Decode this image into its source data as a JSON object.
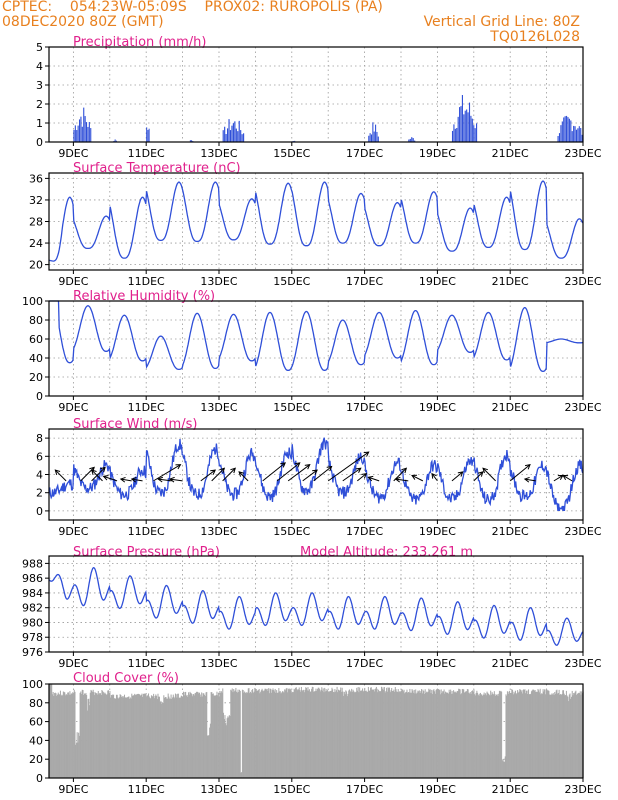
{
  "header": {
    "line1": "CPTEC:    054:23W-05:09S    PROX02: RUROPOLIS (PA)",
    "line2_left": "08DEC2020 80Z (GMT)",
    "line2_right": "Vertical Grid Line: 80Z",
    "line3_right": "TQ0126L028"
  },
  "colors": {
    "header": "#e8801f",
    "title": "#e0208c",
    "series": "#2f4fd8",
    "cloud": "#a9a9a9",
    "grid": "#9a9a9a",
    "arrow": "#000000"
  },
  "x_ticks": [
    "9DEC",
    "11DEC",
    "13DEC",
    "15DEC",
    "17DEC",
    "19DEC",
    "21DEC",
    "23DEC"
  ],
  "chart_data": [
    {
      "id": "precip",
      "type": "bar",
      "title": "Precipitation (mm/h)",
      "ylim": [
        0,
        5
      ],
      "yticks": [
        0,
        1,
        2,
        3,
        4,
        5
      ],
      "x_range_days": [
        8.33,
        23.0
      ],
      "bursts": [
        {
          "x": 9.0,
          "w": 0.5,
          "max": 2.0
        },
        {
          "x": 10.1,
          "w": 0.1,
          "max": 0.2
        },
        {
          "x": 11.0,
          "w": 0.1,
          "max": 1.4
        },
        {
          "x": 12.2,
          "w": 0.1,
          "max": 0.2
        },
        {
          "x": 13.1,
          "w": 0.6,
          "max": 1.4
        },
        {
          "x": 15.0,
          "w": 0.1,
          "max": 0.1
        },
        {
          "x": 17.1,
          "w": 0.3,
          "max": 1.1
        },
        {
          "x": 18.2,
          "w": 0.2,
          "max": 0.3
        },
        {
          "x": 19.4,
          "w": 0.7,
          "max": 2.6
        },
        {
          "x": 22.3,
          "w": 0.7,
          "max": 1.6
        }
      ]
    },
    {
      "id": "temp",
      "type": "line",
      "title": "Surface Temperature (nC)",
      "ylim": [
        19,
        37
      ],
      "yticks": [
        20,
        24,
        28,
        32,
        36
      ],
      "x_range_days": [
        8.33,
        23.0
      ],
      "daily_min": [
        20.3,
        23.0,
        21.2,
        24.5,
        24.3,
        24.6,
        23.8,
        23.5,
        24.0,
        23.5,
        24.0,
        22.5,
        23.2,
        22.8,
        21.2
      ],
      "daily_max": [
        32.5,
        29.0,
        32.5,
        35.3,
        35.3,
        32.2,
        35.1,
        35.3,
        33.2,
        31.5,
        33.5,
        30.5,
        32.5,
        35.5,
        28.5
      ]
    },
    {
      "id": "rh",
      "type": "line",
      "title": "Relative Humidity (%)",
      "ylim": [
        0,
        100
      ],
      "yticks": [
        0,
        20,
        40,
        60,
        80,
        100
      ],
      "x_range_days": [
        8.33,
        23.0
      ],
      "daily_min": [
        35,
        47,
        37,
        28,
        29,
        37,
        27,
        27,
        33,
        40,
        33,
        46,
        38,
        26,
        56
      ],
      "daily_max": [
        100,
        95,
        85,
        63,
        87,
        86,
        88,
        89,
        80,
        88,
        90,
        85,
        88,
        93,
        60
      ]
    },
    {
      "id": "wind",
      "type": "line",
      "title": "Surface Wind (m/s)",
      "ylim": [
        -1,
        9
      ],
      "yticks": [
        0,
        2,
        4,
        6,
        8
      ],
      "x_range_days": [
        8.33,
        23.0
      ],
      "daily_min": [
        2.0,
        2.5,
        1.8,
        2.0,
        1.8,
        1.8,
        1.6,
        2.3,
        2.0,
        1.5,
        1.2,
        1.3,
        1.2,
        1.6,
        0.2
      ],
      "daily_max": [
        3.0,
        5.0,
        4.5,
        7.3,
        6.8,
        6.3,
        6.5,
        7.5,
        6.0,
        5.3,
        5.0,
        5.5,
        6.2,
        5.0,
        5.0
      ],
      "arrows": [
        {
          "t": 8.8,
          "u": -1.2,
          "v": 1.2
        },
        {
          "t": 9.2,
          "u": 1.5,
          "v": 1.5
        },
        {
          "t": 9.5,
          "u": 1.5,
          "v": 1.5
        },
        {
          "t": 9.8,
          "u": -1.2,
          "v": 1.2
        },
        {
          "t": 10.2,
          "u": -1.5,
          "v": 0.5
        },
        {
          "t": 10.6,
          "u": -1.2,
          "v": 0.2
        },
        {
          "t": 10.9,
          "u": -1.2,
          "v": 0.2
        },
        {
          "t": 11.2,
          "u": 3.0,
          "v": 1.8
        },
        {
          "t": 11.7,
          "u": -1.5,
          "v": 0.2
        },
        {
          "t": 12.0,
          "u": -1.4,
          "v": 0.2
        },
        {
          "t": 12.5,
          "u": 1.6,
          "v": 1.2
        },
        {
          "t": 12.8,
          "u": 1.4,
          "v": 1.4
        },
        {
          "t": 13.1,
          "u": 1.4,
          "v": 1.4
        },
        {
          "t": 13.8,
          "u": -1.0,
          "v": 1.0
        },
        {
          "t": 14.2,
          "u": 2.5,
          "v": 2.0
        },
        {
          "t": 14.6,
          "u": 2.5,
          "v": 2.0
        },
        {
          "t": 14.9,
          "u": 2.4,
          "v": 1.8
        },
        {
          "t": 15.3,
          "u": 1.6,
          "v": 1.2
        },
        {
          "t": 15.6,
          "u": 2.0,
          "v": 1.6
        },
        {
          "t": 16.0,
          "u": 4.5,
          "v": 3.2
        },
        {
          "t": 16.4,
          "u": 2.0,
          "v": 1.4
        },
        {
          "t": 16.8,
          "u": 1.0,
          "v": 0.8
        },
        {
          "t": 17.4,
          "u": -1.2,
          "v": 0.4
        },
        {
          "t": 17.8,
          "u": 1.4,
          "v": 1.4
        },
        {
          "t": 18.2,
          "u": -1.4,
          "v": 0.2
        },
        {
          "t": 18.6,
          "u": -1.2,
          "v": 0.6
        },
        {
          "t": 19.0,
          "u": -0.6,
          "v": 0.8
        },
        {
          "t": 19.4,
          "u": 1.2,
          "v": 1.0
        },
        {
          "t": 20.0,
          "u": 1.0,
          "v": 1.0
        },
        {
          "t": 20.6,
          "u": -1.4,
          "v": 1.4
        },
        {
          "t": 21.0,
          "u": 2.2,
          "v": 1.8
        },
        {
          "t": 21.7,
          "u": -1.2,
          "v": 0.2
        },
        {
          "t": 22.2,
          "u": 1.0,
          "v": 0.6
        },
        {
          "t": 22.7,
          "u": -1.0,
          "v": 0.6
        }
      ]
    },
    {
      "id": "pres",
      "type": "line",
      "title": "Surface Pressure (hPa)",
      "annotation": "Model Altitude: 233.261 m",
      "ylim": [
        976,
        989
      ],
      "yticks": [
        976,
        978,
        980,
        982,
        984,
        986,
        988
      ],
      "x_range_days": [
        8.33,
        23.0
      ],
      "start": 985.8,
      "daily_mean": [
        984.5,
        984.5,
        983.8,
        982.5,
        981.8,
        981.0,
        981.5,
        981.5,
        981.0,
        981.0,
        980.8,
        980.3,
        979.8,
        979.5,
        978.5
      ],
      "amp": [
        3.2,
        3.5,
        3.0,
        3.0,
        3.0,
        3.0,
        3.0,
        3.0,
        3.0,
        3.0,
        3.0,
        3.0,
        3.0,
        3.0,
        2.5
      ]
    },
    {
      "id": "cloud",
      "type": "area",
      "title": "Cloud Cover (%)",
      "ylim": [
        0,
        100
      ],
      "yticks": [
        0,
        20,
        40,
        60,
        80,
        100
      ],
      "x_range_days": [
        8.33,
        23.0
      ],
      "base": [
        93,
        94,
        90,
        90,
        92,
        96,
        96,
        97,
        97,
        97,
        95,
        95,
        93,
        95,
        94
      ],
      "dips": [
        {
          "x": 9.1,
          "w": 0.12,
          "low": 35
        },
        {
          "x": 9.4,
          "w": 0.08,
          "low": 70
        },
        {
          "x": 11.4,
          "w": 0.1,
          "low": 70
        },
        {
          "x": 12.7,
          "w": 0.1,
          "low": 45
        },
        {
          "x": 13.2,
          "w": 0.2,
          "low": 55
        },
        {
          "x": 13.6,
          "w": 0.04,
          "low": 0
        },
        {
          "x": 16.5,
          "w": 0.2,
          "low": 85
        },
        {
          "x": 20.8,
          "w": 0.1,
          "low": 10
        },
        {
          "x": 22.6,
          "w": 0.15,
          "low": 80
        }
      ]
    }
  ]
}
